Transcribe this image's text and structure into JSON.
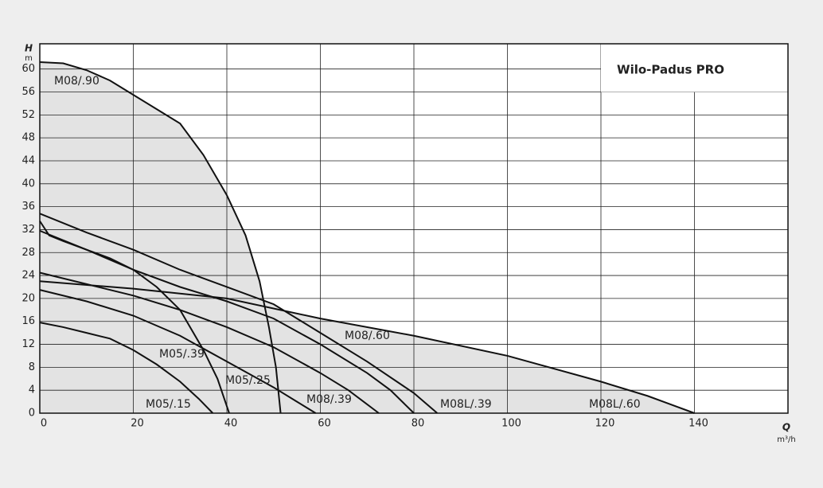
{
  "chart_data": {
    "type": "line",
    "title": "Wilo-Padus PRO",
    "y_label": "H",
    "y_unit": "m",
    "x_label": "Q",
    "x_unit": "m³/h",
    "xlim": [
      0,
      160
    ],
    "ylim": [
      0,
      64.4
    ],
    "xticks": [
      0,
      20,
      40,
      60,
      80,
      100,
      120,
      140
    ],
    "yticks": [
      0,
      4,
      8,
      12,
      16,
      20,
      24,
      28,
      32,
      36,
      40,
      44,
      48,
      52,
      56,
      60
    ],
    "grid": true,
    "area_color": "#e3e3e3",
    "series": [
      {
        "name": "M08/.90",
        "color": "#111111",
        "x": [
          0,
          5,
          10,
          15,
          20,
          25,
          30,
          35,
          40,
          44,
          47,
          49,
          50.5,
          51.5
        ],
        "values": [
          61.2,
          61,
          59.8,
          58,
          55.5,
          53,
          50.5,
          45,
          38,
          31,
          23,
          15,
          8,
          0
        ]
      },
      {
        "name": "M05/.39",
        "color": "#111111",
        "x": [
          0,
          2,
          5,
          10,
          15,
          20,
          25,
          30,
          35,
          38,
          40.5
        ],
        "values": [
          33.5,
          31,
          30,
          28.5,
          27,
          25,
          22,
          18,
          11,
          6,
          0
        ]
      },
      {
        "name": "M05/.15",
        "color": "#111111",
        "x": [
          0,
          5,
          10,
          15,
          20,
          25,
          30,
          34,
          37
        ],
        "values": [
          15.8,
          15,
          14,
          13,
          11,
          8.5,
          5.5,
          2.5,
          0
        ]
      },
      {
        "name": "M05/.25",
        "color": "#111111",
        "x": [
          0,
          10,
          20,
          30,
          40,
          50,
          55,
          59
        ],
        "values": [
          21.5,
          19.5,
          17,
          13.5,
          9,
          4.5,
          2,
          0
        ]
      },
      {
        "name": "M08/.39",
        "color": "#111111",
        "x": [
          0,
          10,
          20,
          30,
          40,
          50,
          60,
          66,
          72.5
        ],
        "values": [
          24.5,
          22.5,
          20.5,
          18,
          15,
          11.5,
          7,
          4,
          0
        ]
      },
      {
        "name": "M08/.60",
        "color": "#111111",
        "x": [
          0,
          10,
          20,
          30,
          40,
          50,
          60,
          70,
          75,
          80
        ],
        "values": [
          31.8,
          28.5,
          25,
          22,
          19.5,
          16.5,
          12,
          7,
          4,
          0
        ]
      },
      {
        "name": "M08L/.39",
        "color": "#111111",
        "x": [
          0,
          10,
          20,
          30,
          40,
          50,
          60,
          70,
          80,
          85
        ],
        "values": [
          34.8,
          31.5,
          28.5,
          25,
          22,
          19,
          14,
          9,
          3.5,
          0
        ]
      },
      {
        "name": "M08L/.60",
        "color": "#111111",
        "x": [
          0,
          20,
          40,
          60,
          80,
          100,
          120,
          130,
          140
        ],
        "values": [
          23,
          21.7,
          20,
          16.5,
          13.5,
          10,
          5.5,
          3,
          0
        ]
      }
    ]
  }
}
